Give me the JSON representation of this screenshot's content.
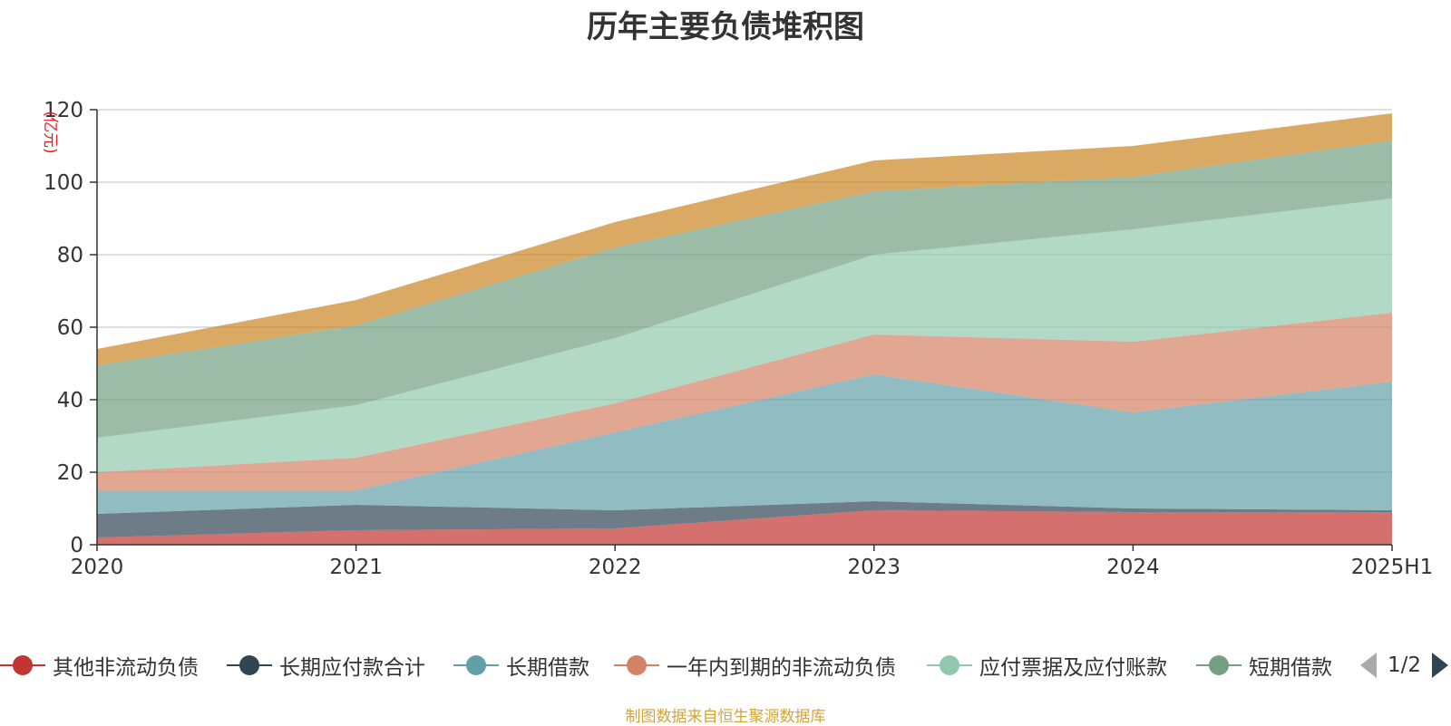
{
  "chart_data": {
    "type": "area",
    "stacked": true,
    "title": "历年主要负债堆积图",
    "unit_label": "(亿元)",
    "categories": [
      "2020",
      "2021",
      "2022",
      "2023",
      "2024",
      "2025H1"
    ],
    "ylim": [
      0,
      120
    ],
    "yticks": [
      0,
      20,
      40,
      60,
      80,
      100,
      120
    ],
    "grid": true,
    "series": [
      {
        "name": "其他非流动负债",
        "color": "#c23531",
        "values": [
          2,
          4,
          4.5,
          9.5,
          9,
          9
        ]
      },
      {
        "name": "长期应付款合计",
        "color": "#2f4554",
        "values": [
          6.5,
          7,
          5,
          2.5,
          1,
          0.5
        ]
      },
      {
        "name": "长期借款",
        "color": "#61a0a8",
        "values": [
          6.5,
          4,
          21.5,
          35,
          26.5,
          35.5
        ]
      },
      {
        "name": "一年内到期的非流动负债",
        "color": "#d48265",
        "values": [
          5,
          9,
          8,
          11,
          19.5,
          19
        ]
      },
      {
        "name": "应付票据及应付账款",
        "color": "#91c7ae",
        "values": [
          9.5,
          14.5,
          18,
          22,
          31,
          31.5
        ]
      },
      {
        "name": "短期借款",
        "color": "#749f83",
        "values": [
          20,
          22,
          25,
          17.5,
          14.5,
          16
        ]
      },
      {
        "name": "",
        "color": "#ca8622",
        "values": [
          4.5,
          7,
          7,
          8.5,
          8.5,
          7.5
        ]
      }
    ]
  },
  "legend": {
    "items": [
      {
        "label": "其他非流动负债",
        "color": "#c23531"
      },
      {
        "label": "长期应付款合计",
        "color": "#2f4554"
      },
      {
        "label": "长期借款",
        "color": "#61a0a8"
      },
      {
        "label": "一年内到期的非流动负债",
        "color": "#d48265"
      },
      {
        "label": "应付票据及应付账款",
        "color": "#91c7ae"
      },
      {
        "label": "短期借款",
        "color": "#749f83"
      }
    ],
    "page_text": "1/2"
  },
  "source_note": "制图数据来自恒生聚源数据库"
}
